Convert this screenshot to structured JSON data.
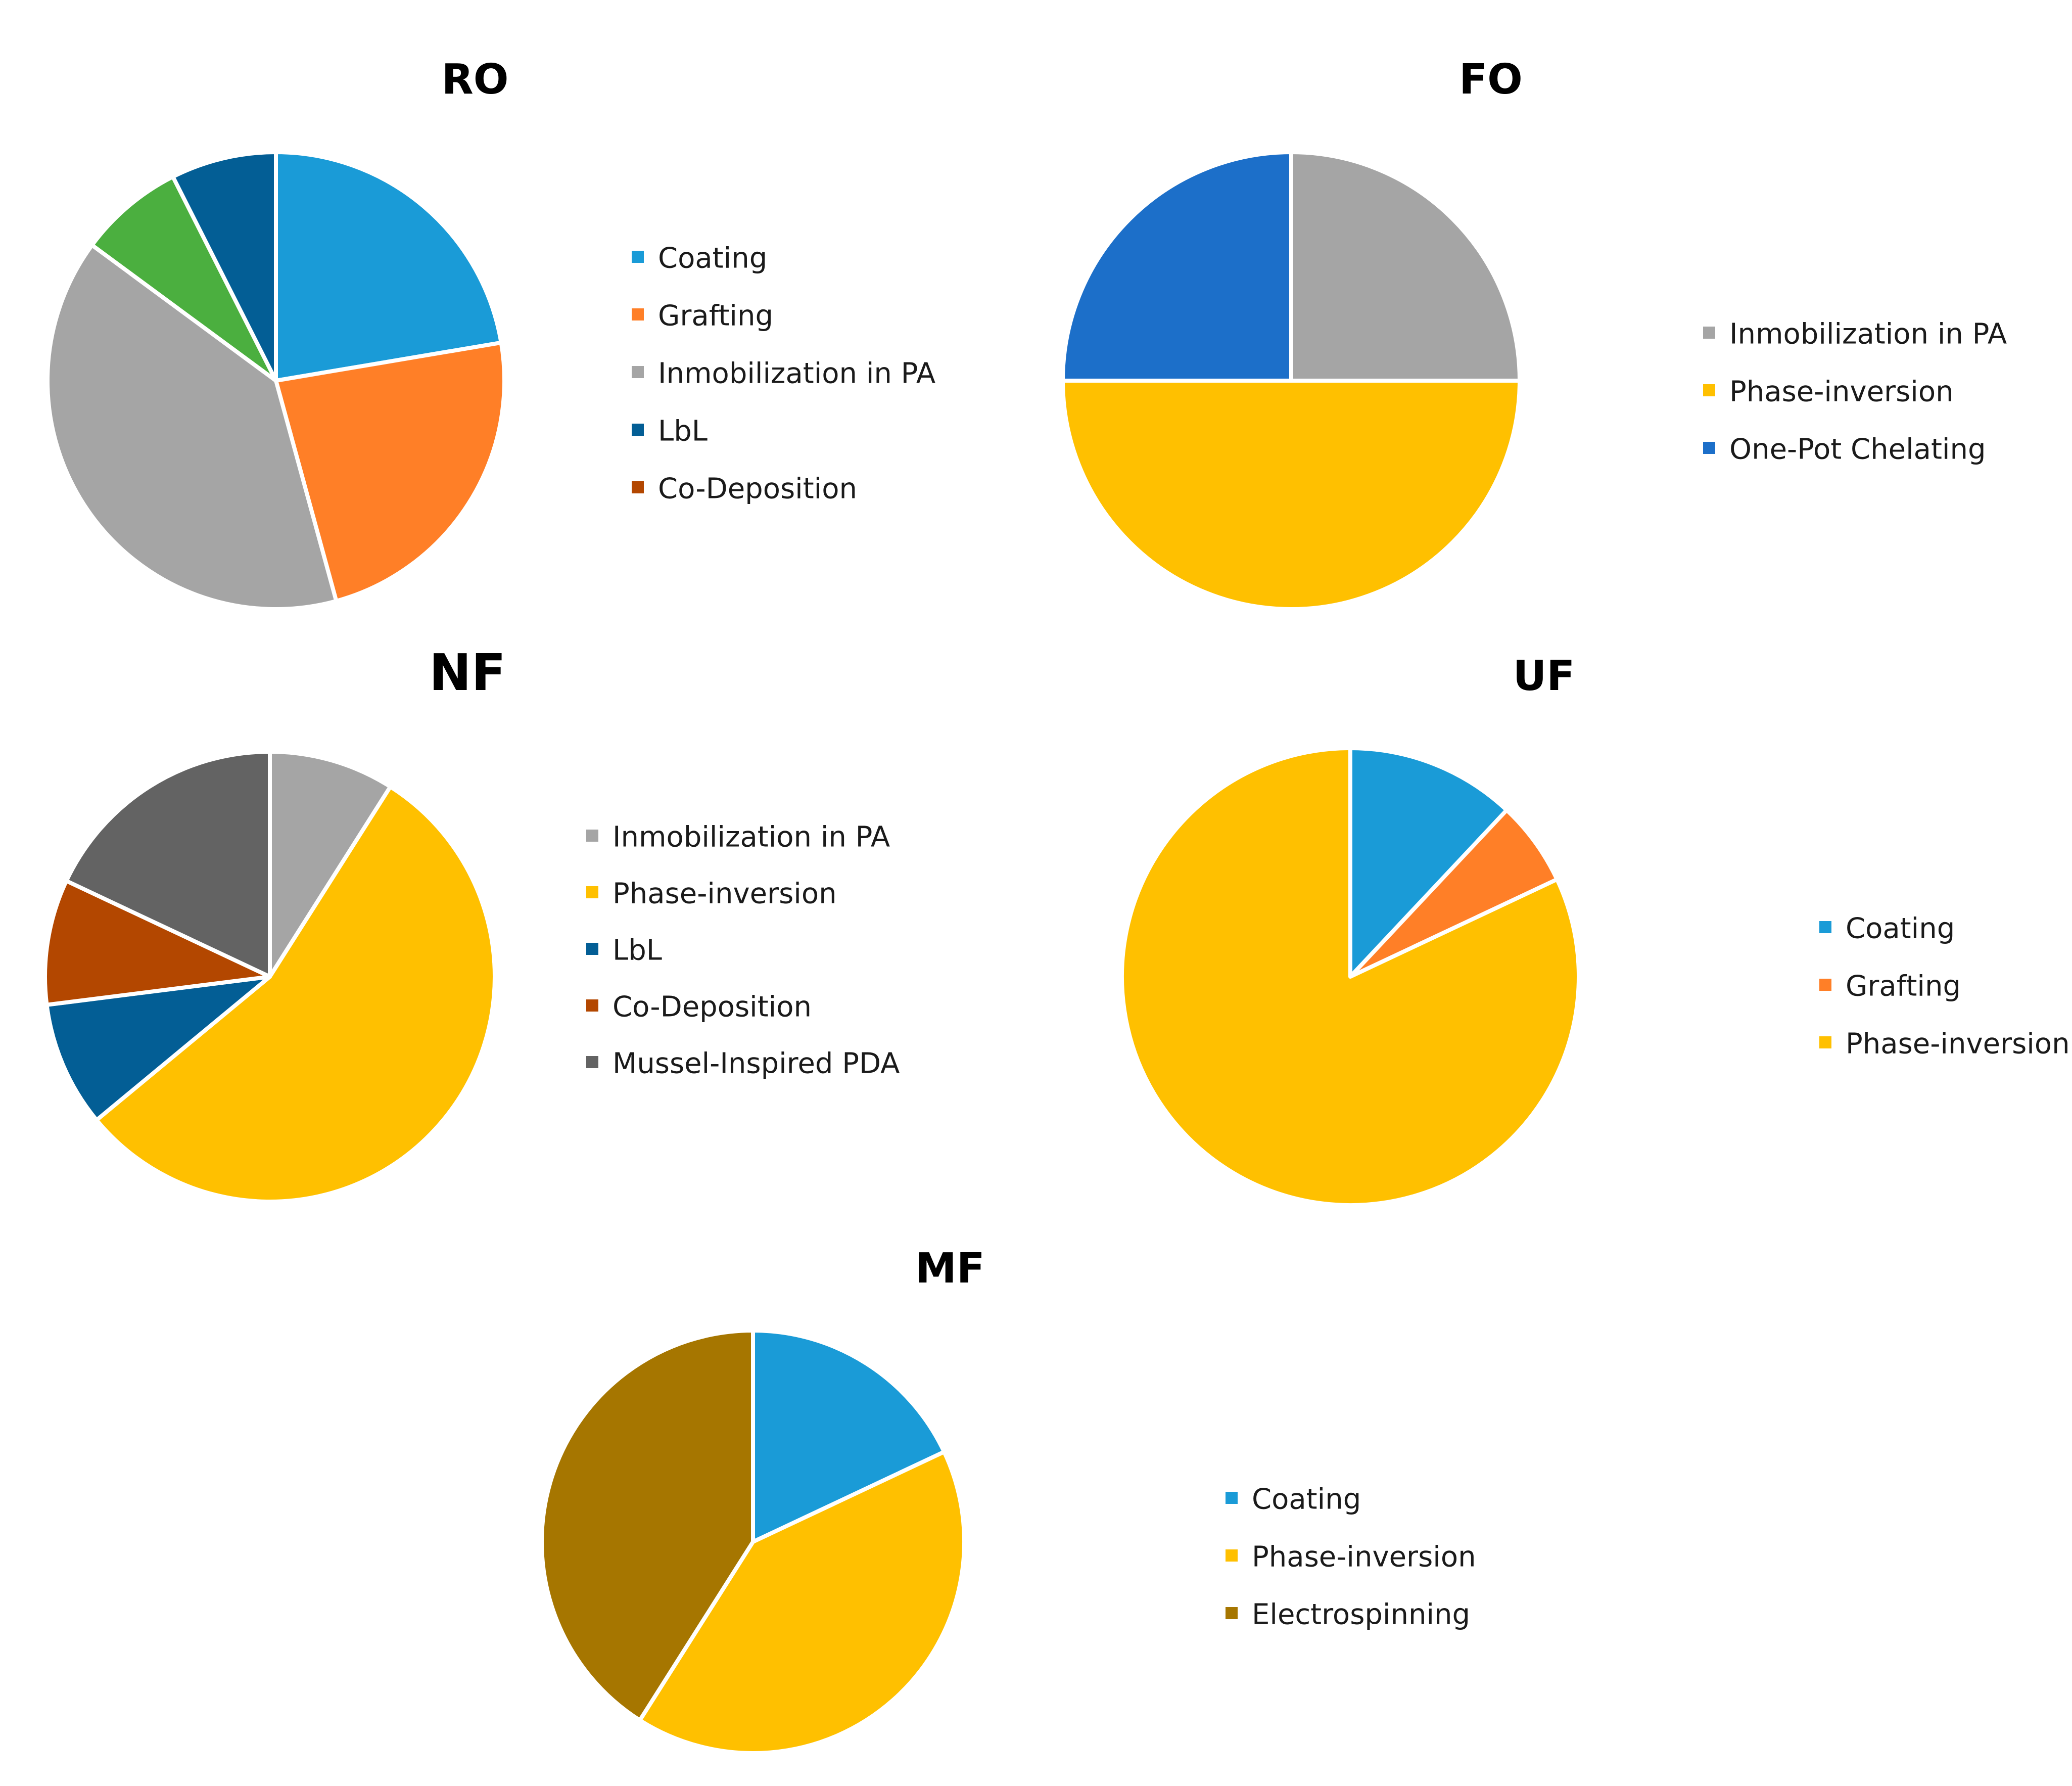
{
  "chart_data": [
    {
      "type": "pie",
      "title": "RO",
      "slices": [
        {
          "label": "Coating",
          "value": 21,
          "color": "#1A9BD7"
        },
        {
          "label": "Grafting",
          "value": 22,
          "color": "#FF7F27"
        },
        {
          "label": "Inmobilization in PA",
          "value": 37,
          "color": "#A5A5A5"
        },
        {
          "label": "",
          "value": 7,
          "color": "#4BAF3F"
        },
        {
          "label": "LbL",
          "value": 7,
          "color": "#035E95"
        },
        {
          "label": "Co-Deposition",
          "value": 0,
          "color": "#B34700"
        }
      ],
      "legend": [
        {
          "label": "Coating",
          "color": "#1A9BD7"
        },
        {
          "label": "Grafting",
          "color": "#FF7F27"
        },
        {
          "label": "Inmobilization in PA",
          "color": "#A5A5A5"
        },
        {
          "label": "LbL",
          "color": "#035E95"
        },
        {
          "label": "Co-Deposition",
          "color": "#B34700"
        }
      ]
    },
    {
      "type": "pie",
      "title": "FO",
      "slices": [
        {
          "label": "Inmobilization in PA",
          "value": 25,
          "color": "#A5A5A5"
        },
        {
          "label": "Phase-inversion",
          "value": 50,
          "color": "#FFC000"
        },
        {
          "label": "One-Pot Chelating",
          "value": 25,
          "color": "#1C6FC9"
        }
      ],
      "legend": [
        {
          "label": "Inmobilization in PA",
          "color": "#A5A5A5"
        },
        {
          "label": "Phase-inversion",
          "color": "#FFC000"
        },
        {
          "label": "One-Pot Chelating",
          "color": "#1C6FC9"
        }
      ]
    },
    {
      "type": "pie",
      "title": "NF",
      "slices": [
        {
          "label": "Inmobilization in PA",
          "value": 9,
          "color": "#A5A5A5"
        },
        {
          "label": "Phase-inversion",
          "value": 55,
          "color": "#FFC000"
        },
        {
          "label": "LbL",
          "value": 9,
          "color": "#035E95"
        },
        {
          "label": "Co-Deposition",
          "value": 9,
          "color": "#B34700"
        },
        {
          "label": "Mussel-Inspired PDA",
          "value": 18,
          "color": "#636363"
        }
      ],
      "legend": [
        {
          "label": "Inmobilization in PA",
          "color": "#A5A5A5"
        },
        {
          "label": "Phase-inversion",
          "color": "#FFC000"
        },
        {
          "label": "LbL",
          "color": "#035E95"
        },
        {
          "label": "Co-Deposition",
          "color": "#B34700"
        },
        {
          "label": "Mussel-Inspired PDA",
          "color": "#636363"
        }
      ]
    },
    {
      "type": "pie",
      "title": "UF",
      "slices": [
        {
          "label": "Coating",
          "value": 12,
          "color": "#1A9BD7"
        },
        {
          "label": "Grafting",
          "value": 6,
          "color": "#FF7F27"
        },
        {
          "label": "Phase-inversion",
          "value": 82,
          "color": "#FFC000"
        }
      ],
      "legend": [
        {
          "label": "Coating",
          "color": "#1A9BD7"
        },
        {
          "label": "Grafting",
          "color": "#FF7F27"
        },
        {
          "label": "Phase-inversion",
          "color": "#FFC000"
        }
      ]
    },
    {
      "type": "pie",
      "title": "MF",
      "slices": [
        {
          "label": "Coating",
          "value": 18,
          "color": "#1A9BD7"
        },
        {
          "label": "Phase-inversion",
          "value": 41,
          "color": "#FFC000"
        },
        {
          "label": "Electrospinning",
          "value": 41,
          "color": "#A67600"
        }
      ],
      "legend": [
        {
          "label": "Coating",
          "color": "#1A9BD7"
        },
        {
          "label": "Phase-inversion",
          "color": "#FFC000"
        },
        {
          "label": "Electrospinning",
          "color": "#A67600"
        }
      ]
    }
  ]
}
